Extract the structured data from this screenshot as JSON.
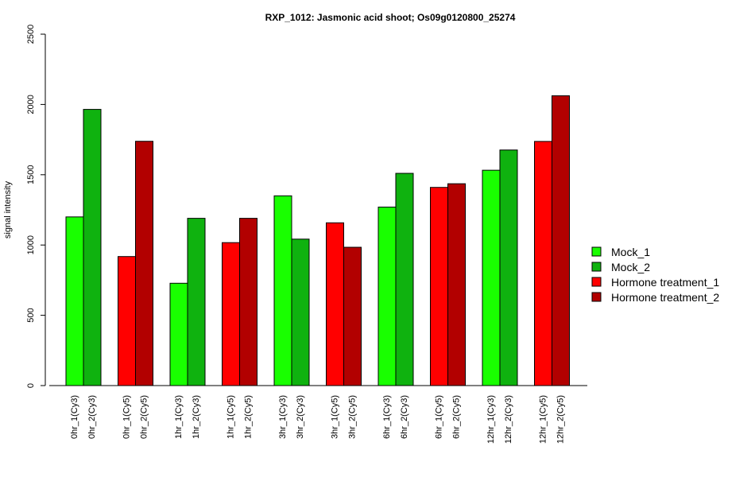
{
  "chart_data": {
    "type": "bar",
    "title": "RXP_1012: Jasmonic acid shoot; Os09g0120800_25274",
    "ylabel": "signal intensity",
    "ylim": [
      0,
      2500
    ],
    "yticks": [
      0,
      500,
      1000,
      1500,
      2000,
      2500
    ],
    "grid": false,
    "legend_position": "right",
    "legend": [
      {
        "name": "Mock_1",
        "color": "#19ff00"
      },
      {
        "name": "Mock_2",
        "color": "#0fb20f"
      },
      {
        "name": "Hormone treatment_1",
        "color": "#ff0000"
      },
      {
        "name": "Hormone treatment_2",
        "color": "#b20000"
      }
    ],
    "groups": [
      {
        "bars": [
          {
            "label": "0hr_1(Cy3)",
            "value": 1200,
            "series": 0
          },
          {
            "label": "0hr_2(Cy3)",
            "value": 1965,
            "series": 1
          }
        ]
      },
      {
        "bars": [
          {
            "label": "0hr_1(Cy5)",
            "value": 918,
            "series": 2
          },
          {
            "label": "0hr_2(Cy5)",
            "value": 1738,
            "series": 3
          }
        ]
      },
      {
        "bars": [
          {
            "label": "1hr_1(Cy3)",
            "value": 728,
            "series": 0
          },
          {
            "label": "1hr_2(Cy3)",
            "value": 1190,
            "series": 1
          }
        ]
      },
      {
        "bars": [
          {
            "label": "1hr_1(Cy5)",
            "value": 1017,
            "series": 2
          },
          {
            "label": "1hr_2(Cy5)",
            "value": 1190,
            "series": 3
          }
        ]
      },
      {
        "bars": [
          {
            "label": "3hr_1(Cy3)",
            "value": 1350,
            "series": 0
          },
          {
            "label": "3hr_2(Cy3)",
            "value": 1042,
            "series": 1
          }
        ]
      },
      {
        "bars": [
          {
            "label": "3hr_1(Cy5)",
            "value": 1158,
            "series": 2
          },
          {
            "label": "3hr_2(Cy5)",
            "value": 984,
            "series": 3
          }
        ]
      },
      {
        "bars": [
          {
            "label": "6hr_1(Cy3)",
            "value": 1270,
            "series": 0
          },
          {
            "label": "6hr_2(Cy3)",
            "value": 1510,
            "series": 1
          }
        ]
      },
      {
        "bars": [
          {
            "label": "6hr_1(Cy5)",
            "value": 1410,
            "series": 2
          },
          {
            "label": "6hr_2(Cy5)",
            "value": 1436,
            "series": 3
          }
        ]
      },
      {
        "bars": [
          {
            "label": "12hr_1(Cy3)",
            "value": 1532,
            "series": 0
          },
          {
            "label": "12hr_2(Cy3)",
            "value": 1676,
            "series": 1
          }
        ]
      },
      {
        "bars": [
          {
            "label": "12hr_1(Cy5)",
            "value": 1737,
            "series": 2
          },
          {
            "label": "12hr_2(Cy5)",
            "value": 2062,
            "series": 3
          }
        ]
      }
    ]
  }
}
